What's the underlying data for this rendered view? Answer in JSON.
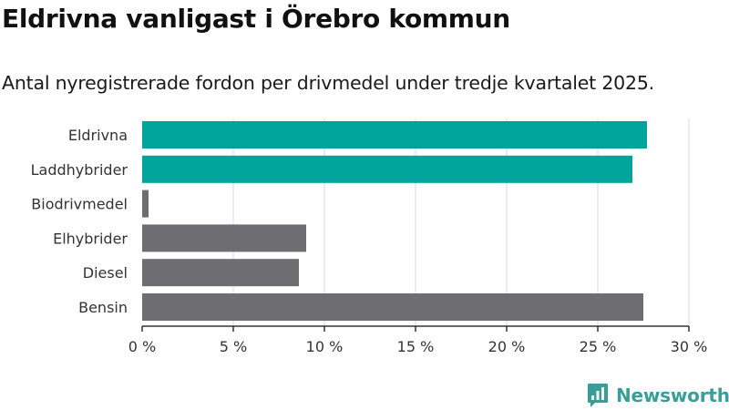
{
  "title": "Eldrivna vanligast i Örebro kommun",
  "subtitle": "Antal nyregistrerade fordon per drivmedel under tredje kvartalet 2025.",
  "brand": {
    "name": "Newsworthy",
    "icon": "newsworthy-logo-icon",
    "color": "#3a9e98"
  },
  "colors": {
    "highlight": "#00a49a",
    "default": "#6e6d72",
    "grid": "#d9d9d9",
    "axis": "#333333"
  },
  "chart_data": {
    "type": "bar",
    "orientation": "horizontal",
    "title": "Eldrivna vanligast i Örebro kommun",
    "subtitle": "Antal nyregistrerade fordon per drivmedel under tredje kvartalet 2025.",
    "xlabel": "",
    "ylabel": "",
    "unit": "%",
    "xlim": [
      0,
      30
    ],
    "x_ticks": [
      0,
      5,
      10,
      15,
      20,
      25,
      30
    ],
    "x_tick_labels": [
      "0 %",
      "5 %",
      "10 %",
      "15 %",
      "20 %",
      "25 %",
      "30 %"
    ],
    "categories": [
      "Eldrivna",
      "Laddhybrider",
      "Biodrivmedel",
      "Elhybrider",
      "Diesel",
      "Bensin"
    ],
    "values": [
      27.7,
      26.9,
      0.35,
      9.0,
      8.6,
      27.5
    ],
    "highlighted": [
      true,
      true,
      false,
      false,
      false,
      false
    ],
    "grid": true,
    "legend": "none"
  }
}
